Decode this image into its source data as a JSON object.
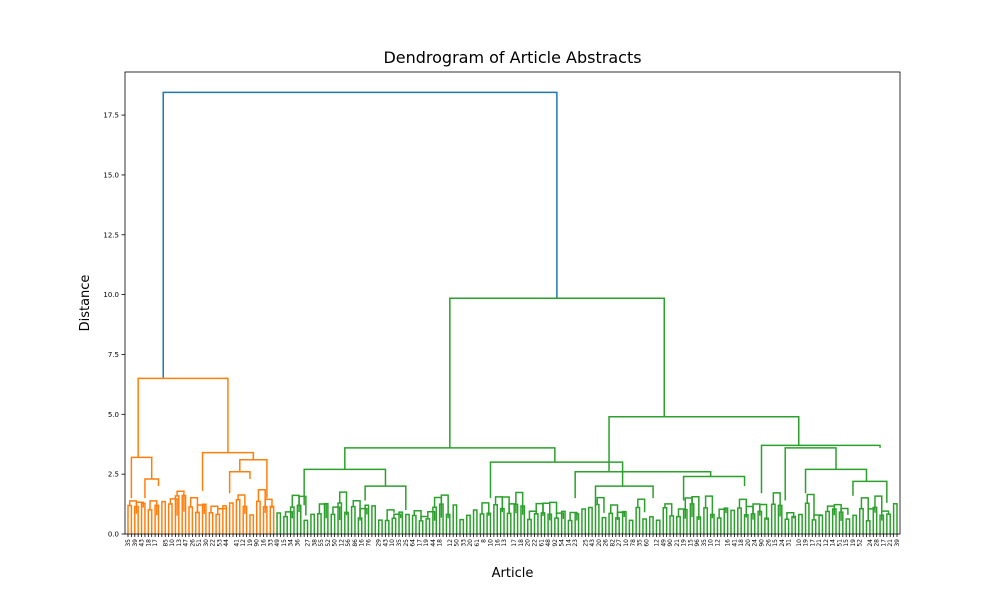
{
  "chart_data": {
    "type": "dendrogram",
    "title": "Dendrogram of Article Abstracts",
    "xlabel": "Article",
    "ylabel": "Distance",
    "ylim": [
      0,
      19.3
    ],
    "yticks": [
      "0.0",
      "2.5",
      "5.0",
      "7.5",
      "10.0",
      "12.5",
      "15.0",
      "17.5"
    ],
    "grid": false,
    "leaf_count": 228,
    "leaf_labels_visible": [
      "35",
      "39",
      "43",
      "18",
      "17",
      "85",
      "10",
      "13",
      "47",
      "26",
      "51",
      "30",
      "22",
      "53",
      "44",
      "41",
      "12",
      "19",
      "90",
      "16",
      "33",
      "49",
      "15",
      "34",
      "36",
      "27",
      "38",
      "55",
      "52",
      "50",
      "12",
      "56",
      "86",
      "16",
      "76",
      "29",
      "43",
      "10",
      "35",
      "25",
      "64",
      "17",
      "19",
      "44",
      "18",
      "12",
      "50",
      "33",
      "20",
      "61",
      "8",
      "10",
      "16",
      "13",
      "17",
      "18",
      "20",
      "22",
      "61",
      "48",
      "92",
      "54",
      "14",
      "23",
      "25",
      "43",
      "20",
      "26",
      "82",
      "27",
      "10",
      "78",
      "35",
      "60",
      "12",
      "49",
      "90",
      "21",
      "19",
      "15",
      "96",
      "35",
      "10",
      "12",
      "16",
      "41",
      "18",
      "20",
      "24",
      "90",
      "26",
      "15",
      "24",
      "31",
      "10",
      "19",
      "17",
      "21",
      "12",
      "14",
      "51",
      "15",
      "19",
      "52",
      "24",
      "28",
      "17",
      "21",
      "39"
    ],
    "clusters": [
      {
        "name": "",
        "color": "#ff7f0e",
        "leaves": 44,
        "height": 6.5
      },
      {
        "name": "",
        "color": "#2ca02c",
        "leaves": 184,
        "height": 9.85
      }
    ],
    "root_height": 18.45,
    "links": [
      {
        "color": "#1f77b4",
        "x0": 10.4,
        "y0": 6.5,
        "x1": 126.6,
        "y1": 9.85,
        "h": 18.45
      },
      {
        "color": "#ff7f0e",
        "x0": 3.0,
        "y0": 3.2,
        "x1": 29.5,
        "y1": 3.4,
        "h": 6.5
      },
      {
        "color": "#ff7f0e",
        "x0": 1.0,
        "y0": 1.5,
        "x1": 7.0,
        "y1": 2.3,
        "h": 3.2
      },
      {
        "color": "#ff7f0e",
        "x0": 5.0,
        "y0": 1.5,
        "x1": 9.0,
        "y1": 2.0,
        "h": 2.3
      },
      {
        "color": "#ff7f0e",
        "x0": 22.0,
        "y0": 1.8,
        "x1": 37.0,
        "y1": 3.1,
        "h": 3.4
      },
      {
        "color": "#ff7f0e",
        "x0": 33.0,
        "y0": 2.6,
        "x1": 41.0,
        "y1": 1.5,
        "h": 3.1
      },
      {
        "color": "#ff7f0e",
        "x0": 30.0,
        "y0": 1.7,
        "x1": 36.0,
        "y1": 2.3,
        "h": 2.6
      },
      {
        "color": "#2ca02c",
        "x0": 95.0,
        "y0": 3.6,
        "x1": 158.3,
        "y1": 4.9,
        "h": 9.85
      },
      {
        "color": "#2ca02c",
        "x0": 64.0,
        "y0": 2.7,
        "x1": 126.0,
        "y1": 3.0,
        "h": 3.6
      },
      {
        "color": "#2ca02c",
        "x0": 52.0,
        "y0": 1.2,
        "x1": 76.0,
        "y1": 2.0,
        "h": 2.7
      },
      {
        "color": "#2ca02c",
        "x0": 70.0,
        "y0": 1.4,
        "x1": 82.0,
        "y1": 1.0,
        "h": 2.0
      },
      {
        "color": "#2ca02c",
        "x0": 107.0,
        "y0": 1.5,
        "x1": 146.0,
        "y1": 2.0,
        "h": 3.0
      },
      {
        "color": "#2ca02c",
        "x0": 138.0,
        "y0": 1.2,
        "x1": 155.0,
        "y1": 1.5,
        "h": 2.0
      },
      {
        "color": "#2ca02c",
        "x0": 142.0,
        "y0": 2.6,
        "x1": 198.0,
        "y1": 3.7,
        "h": 4.9
      },
      {
        "color": "#2ca02c",
        "x0": 132.0,
        "y0": 1.5,
        "x1": 172.0,
        "y1": 2.4,
        "h": 2.6
      },
      {
        "color": "#2ca02c",
        "x0": 164.0,
        "y0": 1.4,
        "x1": 182.0,
        "y1": 2.0,
        "h": 2.4
      },
      {
        "color": "#2ca02c",
        "x0": 187.0,
        "y0": 1.7,
        "x1": 222.0,
        "y1": 3.6,
        "h": 3.7
      },
      {
        "color": "#2ca02c",
        "x0": 194.0,
        "y0": 1.4,
        "x1": 209.0,
        "y1": 2.7,
        "h": 3.6
      },
      {
        "color": "#2ca02c",
        "x0": 200.0,
        "y0": 1.7,
        "x1": 218.0,
        "y1": 2.2,
        "h": 2.7
      },
      {
        "color": "#2ca02c",
        "x0": 214.0,
        "y0": 1.6,
        "x1": 224.0,
        "y1": 1.3,
        "h": 2.2
      }
    ]
  }
}
